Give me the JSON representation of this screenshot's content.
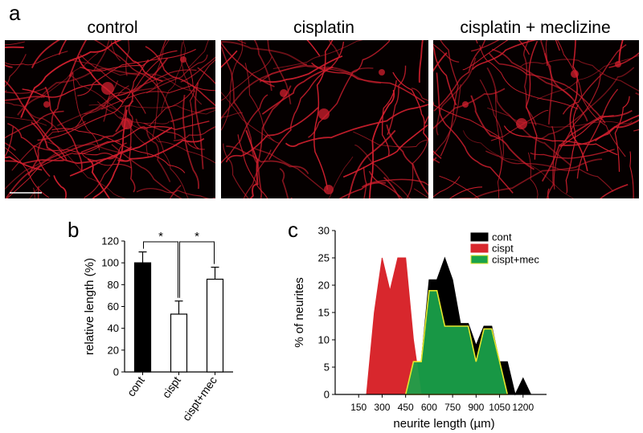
{
  "panel_letters": {
    "a": "a",
    "b": "b",
    "c": "c"
  },
  "micrographs": [
    {
      "title": "control"
    },
    {
      "title": "cisplatin"
    },
    {
      "title": "cisplatin + meclizine"
    }
  ],
  "colors": {
    "neurite": "#d21f2e",
    "cont": "#000000",
    "cispt": "#d8272d",
    "cispt_mec": "#1aa34a",
    "cispt_mec_edge": "#e5e62b"
  },
  "chart_data": [
    {
      "type": "bar",
      "categories": [
        "cont",
        "cispt",
        "cispt+mec"
      ],
      "values": [
        100,
        53,
        85
      ],
      "errors": [
        10,
        12,
        11
      ],
      "fills": [
        "#000000",
        "#ffffff",
        "#ffffff"
      ],
      "ylabel": "relative  length (%)",
      "ylim": [
        0,
        120
      ],
      "yticks": [
        0,
        20,
        40,
        60,
        80,
        100,
        120
      ],
      "significance": [
        {
          "from": 0,
          "to": 1,
          "label": "*"
        },
        {
          "from": 1,
          "to": 2,
          "label": "*"
        }
      ]
    },
    {
      "type": "area",
      "xlabel": "neurite length (µm)",
      "ylabel": "% of neurites",
      "xlim": [
        0,
        1350
      ],
      "ylim": [
        0,
        30
      ],
      "xticks": [
        150,
        300,
        450,
        600,
        750,
        900,
        1050,
        1200
      ],
      "yticks": [
        0,
        5,
        10,
        15,
        20,
        25,
        30
      ],
      "legend_position": "top-right",
      "series": [
        {
          "name": "cont",
          "color": "#000000",
          "x": [
            450,
            500,
            550,
            600,
            650,
            700,
            750,
            800,
            850,
            900,
            950,
            1000,
            1050,
            1100,
            1150,
            1200,
            1250
          ],
          "y": [
            0,
            6,
            6,
            21,
            21,
            25,
            21,
            13,
            13,
            9,
            12.5,
            12.5,
            6,
            6,
            0,
            3,
            0
          ]
        },
        {
          "name": "cispt",
          "color": "#d8272d",
          "x": [
            200,
            250,
            300,
            350,
            400,
            450,
            500,
            550
          ],
          "y": [
            0,
            15,
            25,
            19,
            25,
            25,
            10,
            0
          ]
        },
        {
          "name": "cispt+mec",
          "color": "#1aa34a",
          "x": [
            450,
            500,
            550,
            600,
            650,
            700,
            750,
            800,
            850,
            900,
            950,
            1000,
            1050,
            1100
          ],
          "y": [
            0,
            6,
            6,
            19,
            19,
            12.5,
            12.5,
            12.5,
            12.5,
            6,
            12,
            12,
            6,
            0
          ]
        }
      ]
    }
  ]
}
